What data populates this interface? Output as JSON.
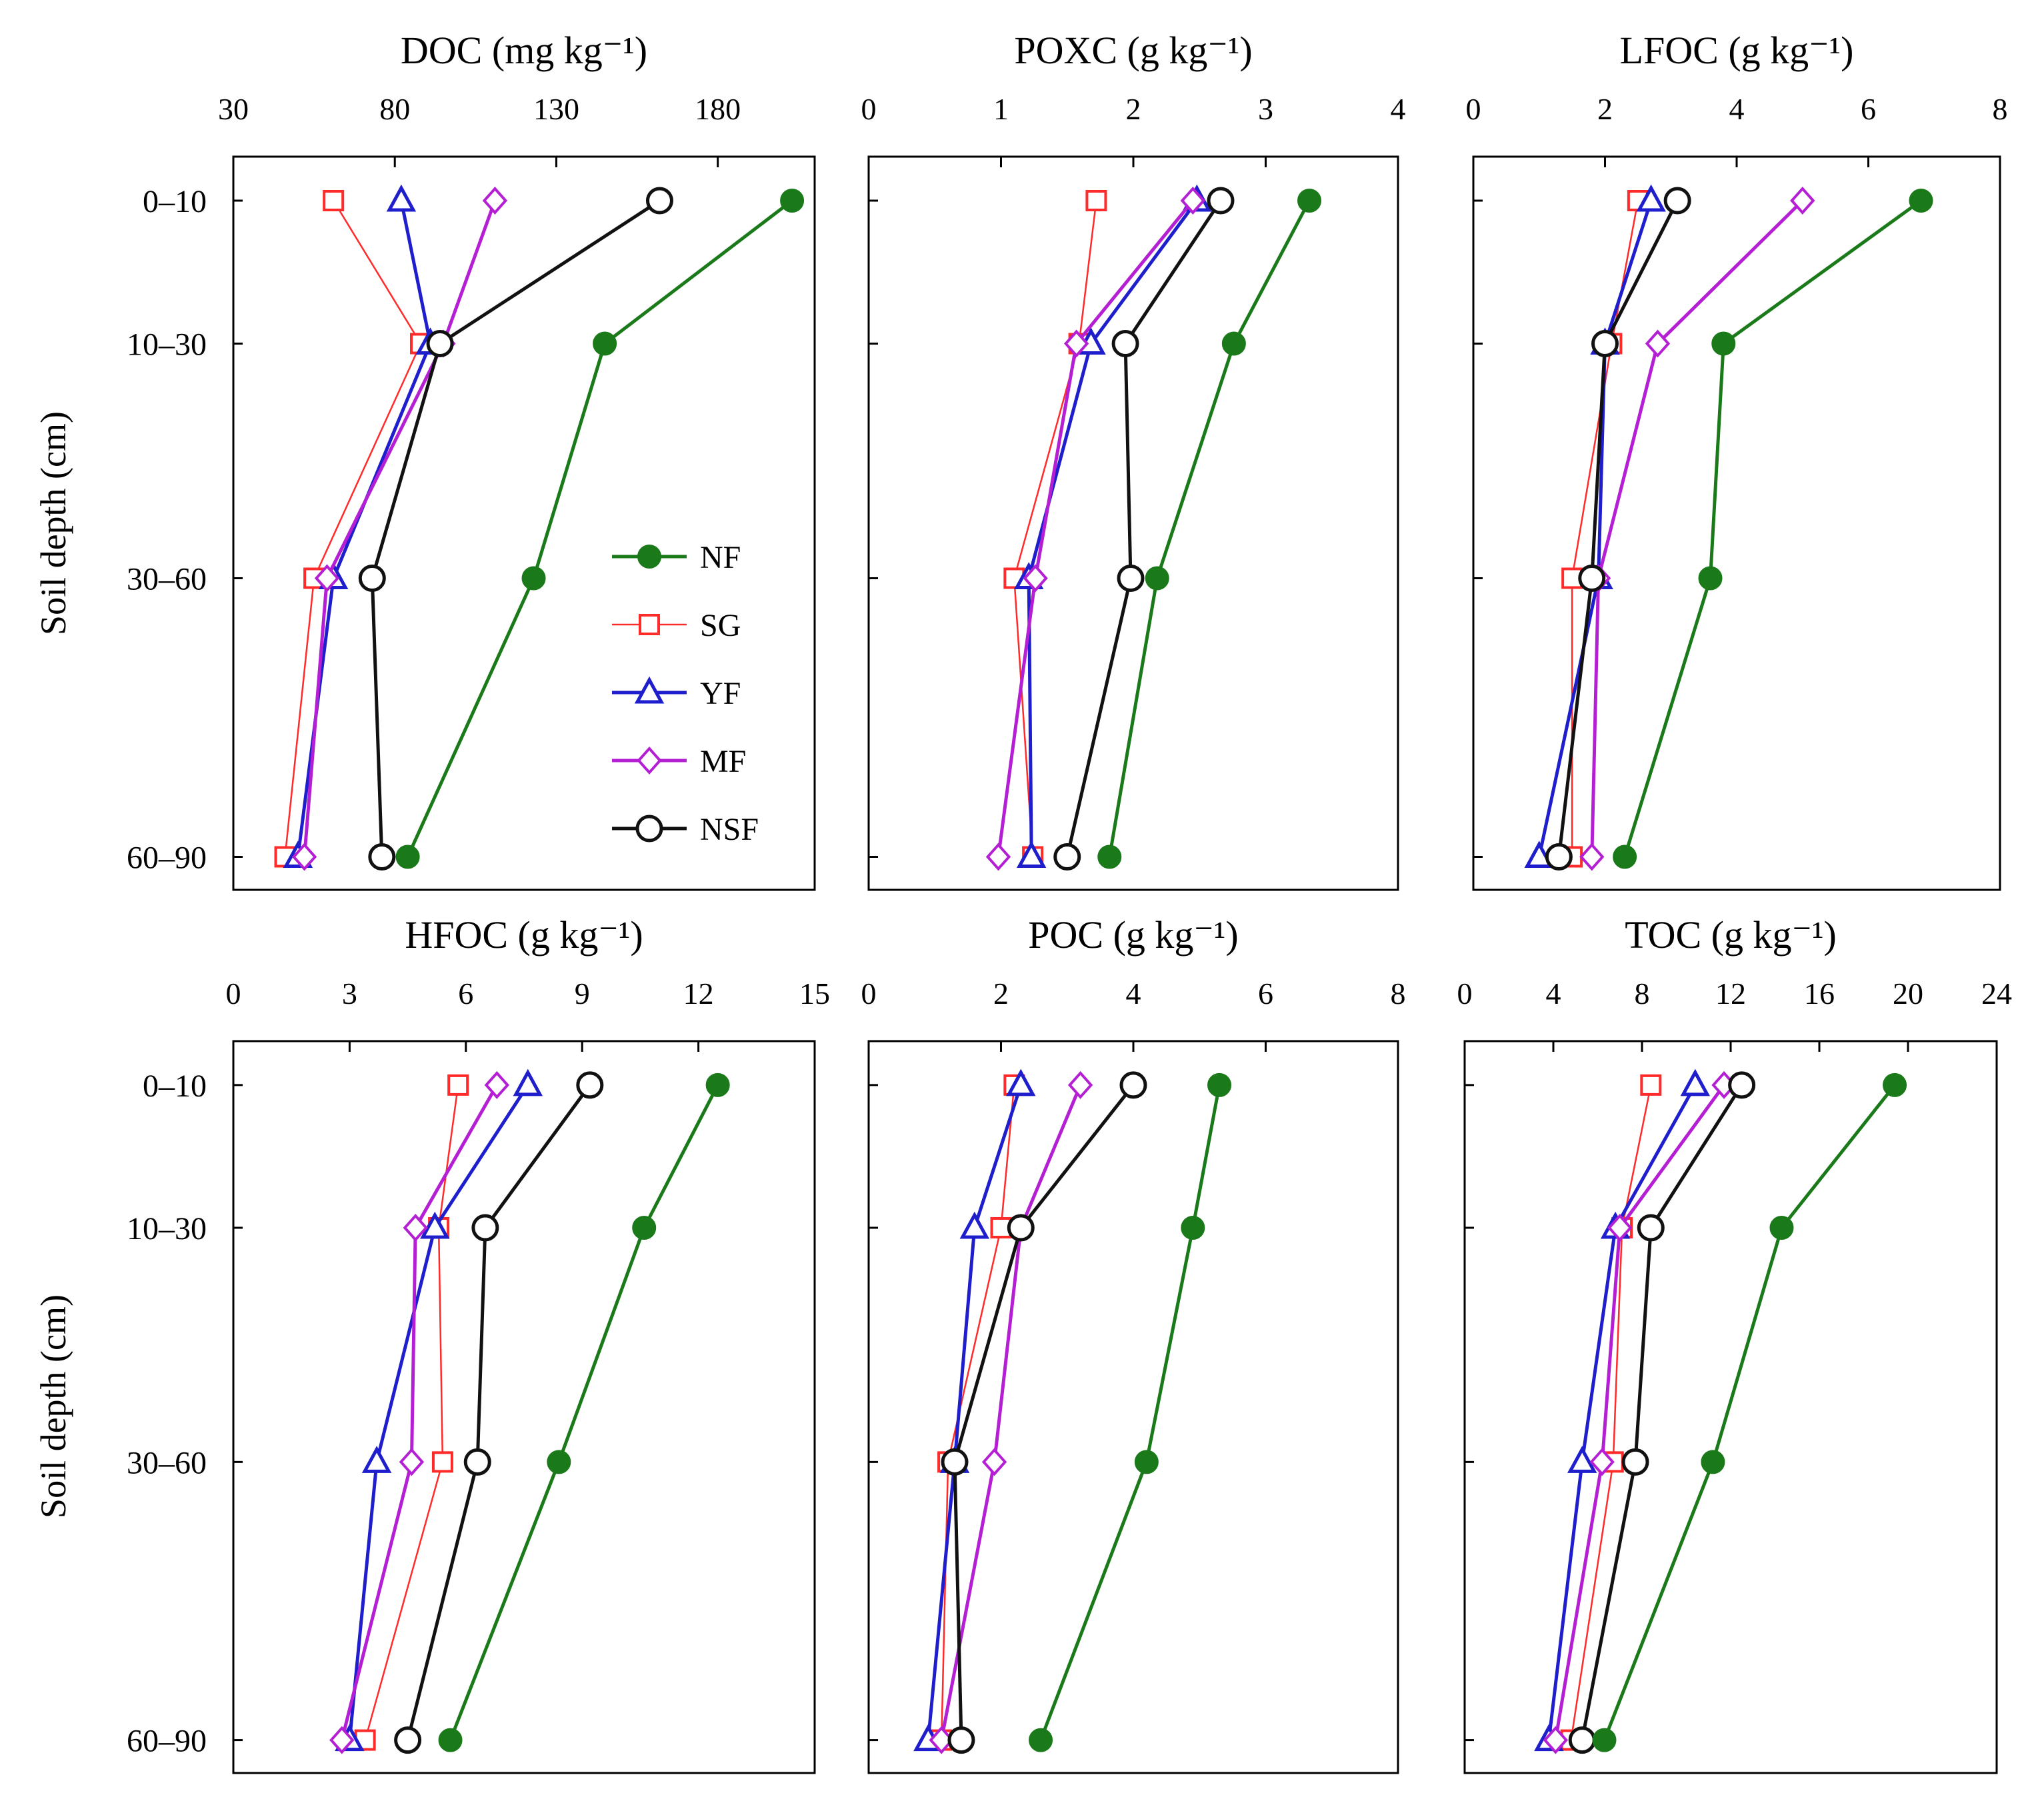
{
  "chart_data": {
    "type": "line",
    "layout": "2x3 grid of depth profiles",
    "ylabel": "Soil depth (cm)",
    "depth_categories": [
      "0–10",
      "10–30",
      "30–60",
      "60–90"
    ],
    "series_styles": [
      {
        "name": "NF",
        "color": "#1a7a1a",
        "marker": "filled-circle"
      },
      {
        "name": "SG",
        "color": "#ff2a2a",
        "marker": "open-square"
      },
      {
        "name": "YF",
        "color": "#1e1ecc",
        "marker": "open-triangle"
      },
      {
        "name": "MF",
        "color": "#b51fd4",
        "marker": "open-diamond"
      },
      {
        "name": "NSF",
        "color": "#111111",
        "marker": "open-circle"
      }
    ],
    "legend": {
      "location": "inside DOC panel, lower-right",
      "entries": [
        "NF",
        "SG",
        "YF",
        "MF",
        "NSF"
      ]
    },
    "panels": [
      {
        "title": "DOC",
        "unit": "(mg kg⁻¹)",
        "xlim": [
          30,
          210
        ],
        "ticks": [
          30,
          80,
          130,
          180
        ],
        "tick_labels": [
          "30",
          "80",
          "130",
          "180"
        ],
        "series": [
          {
            "name": "NF",
            "values": [
              203,
              145,
              123,
              84
            ]
          },
          {
            "name": "SG",
            "values": [
              61,
              88,
              55,
              46
            ]
          },
          {
            "name": "YF",
            "values": [
              82,
              91,
              61,
              50
            ]
          },
          {
            "name": "MF",
            "values": [
              111,
              95,
              59,
              52
            ]
          },
          {
            "name": "NSF",
            "values": [
              162,
              94,
              73,
              76
            ]
          }
        ]
      },
      {
        "title": "POXC",
        "unit": "(g kg⁻¹)",
        "xlim": [
          0,
          4
        ],
        "ticks": [
          0,
          1,
          2,
          3,
          4
        ],
        "tick_labels": [
          "0",
          "1",
          "2",
          "3",
          "4"
        ],
        "series": [
          {
            "name": "NF",
            "values": [
              3.33,
              2.76,
              2.18,
              1.82
            ]
          },
          {
            "name": "SG",
            "values": [
              1.72,
              1.59,
              1.1,
              1.24
            ]
          },
          {
            "name": "YF",
            "values": [
              2.48,
              1.68,
              1.21,
              1.23
            ]
          },
          {
            "name": "MF",
            "values": [
              2.45,
              1.57,
              1.26,
              0.98
            ]
          },
          {
            "name": "NSF",
            "values": [
              2.66,
              1.94,
              1.98,
              1.5
            ]
          }
        ]
      },
      {
        "title": "LFOC",
        "unit": "(g kg⁻¹)",
        "xlim": [
          0,
          8
        ],
        "ticks": [
          0,
          2,
          4,
          6,
          8
        ],
        "tick_labels": [
          "0",
          "2",
          "4",
          "6",
          "8"
        ],
        "series": [
          {
            "name": "NF",
            "values": [
              6.8,
              3.8,
              3.6,
              2.3
            ]
          },
          {
            "name": "SG",
            "values": [
              2.5,
              2.1,
              1.5,
              1.5
            ]
          },
          {
            "name": "YF",
            "values": [
              2.7,
              2.0,
              1.9,
              1.0
            ]
          },
          {
            "name": "MF",
            "values": [
              5.0,
              2.8,
              1.9,
              1.8
            ]
          },
          {
            "name": "NSF",
            "values": [
              3.1,
              2.0,
              1.8,
              1.3
            ]
          }
        ]
      },
      {
        "title": "HFOC",
        "unit": "(g kg⁻¹)",
        "xlim": [
          0,
          15
        ],
        "ticks": [
          0,
          3,
          6,
          9,
          12,
          15
        ],
        "tick_labels": [
          "0",
          "3",
          "6",
          "9",
          "12",
          "15"
        ],
        "series": [
          {
            "name": "NF",
            "values": [
              12.5,
              10.6,
              8.4,
              5.6
            ]
          },
          {
            "name": "SG",
            "values": [
              5.8,
              5.3,
              5.4,
              3.4
            ]
          },
          {
            "name": "YF",
            "values": [
              7.6,
              5.2,
              3.7,
              3.0
            ]
          },
          {
            "name": "MF",
            "values": [
              6.8,
              4.7,
              4.6,
              2.8
            ]
          },
          {
            "name": "NSF",
            "values": [
              9.2,
              6.5,
              6.3,
              4.5
            ]
          }
        ]
      },
      {
        "title": "POC",
        "unit": "(g kg⁻¹)",
        "xlim": [
          0,
          8
        ],
        "ticks": [
          0,
          2,
          4,
          6,
          8
        ],
        "tick_labels": [
          "0",
          "2",
          "4",
          "6",
          "8"
        ],
        "series": [
          {
            "name": "NF",
            "values": [
              5.3,
              4.9,
              4.2,
              2.6
            ]
          },
          {
            "name": "SG",
            "values": [
              2.2,
              2.0,
              1.2,
              1.1
            ]
          },
          {
            "name": "YF",
            "values": [
              2.3,
              1.6,
              1.3,
              0.9
            ]
          },
          {
            "name": "MF",
            "values": [
              3.2,
              2.3,
              1.9,
              1.1
            ]
          },
          {
            "name": "NSF",
            "values": [
              4.0,
              2.3,
              1.3,
              1.4
            ]
          }
        ]
      },
      {
        "title": "TOC",
        "unit": "(g kg⁻¹)",
        "xlim": [
          0,
          24
        ],
        "ticks": [
          0,
          4,
          8,
          12,
          16,
          20,
          24
        ],
        "tick_labels": [
          "0",
          "4",
          "8",
          "12",
          "16",
          "20",
          "24"
        ],
        "series": [
          {
            "name": "NF",
            "values": [
              19.4,
              14.3,
              11.2,
              6.3
            ]
          },
          {
            "name": "SG",
            "values": [
              8.4,
              7.1,
              6.7,
              4.8
            ]
          },
          {
            "name": "YF",
            "values": [
              10.4,
              6.8,
              5.3,
              3.8
            ]
          },
          {
            "name": "MF",
            "values": [
              11.7,
              7.0,
              6.2,
              4.1
            ]
          },
          {
            "name": "NSF",
            "values": [
              12.5,
              8.4,
              7.7,
              5.3
            ]
          }
        ]
      }
    ]
  }
}
